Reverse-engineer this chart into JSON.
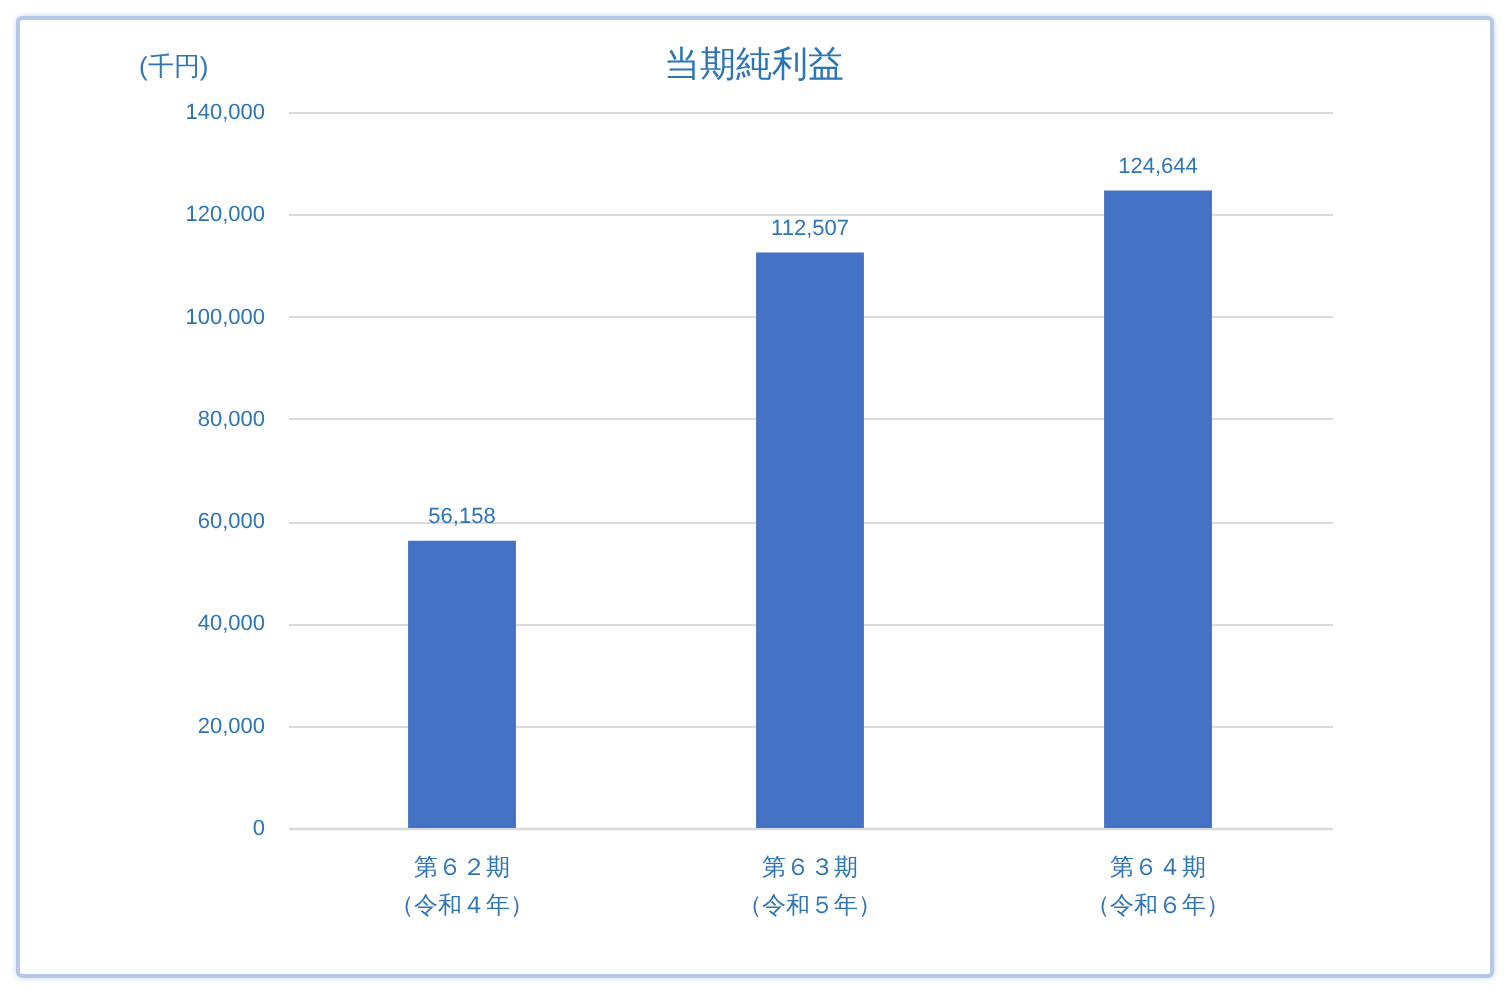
{
  "chart_data": {
    "type": "bar",
    "title": "当期純利益",
    "ylabel": "(千円)",
    "categories": [
      "第６２期（令和４年）",
      "第６３期（令和５年）",
      "第６４期（令和６年）"
    ],
    "values": [
      56158,
      112507,
      124644
    ],
    "value_labels": [
      "56,158",
      "112,507",
      "124,644"
    ],
    "color": "#4472c4",
    "ylim": [
      0,
      140000
    ],
    "yticks": [
      0,
      {
        "value": 20000,
        "label": "20,000"
      },
      {
        "value": 40000,
        "label": "40,000"
      },
      {
        "value": 60000,
        "label": "60,000"
      },
      {
        "value": 80000,
        "label": "80,000"
      },
      {
        "value": 100000,
        "label": "100,000"
      },
      {
        "value": 120000,
        "label": "120,000"
      },
      {
        "value": 140000,
        "label": "140,000"
      }
    ],
    "grid": "y"
  }
}
